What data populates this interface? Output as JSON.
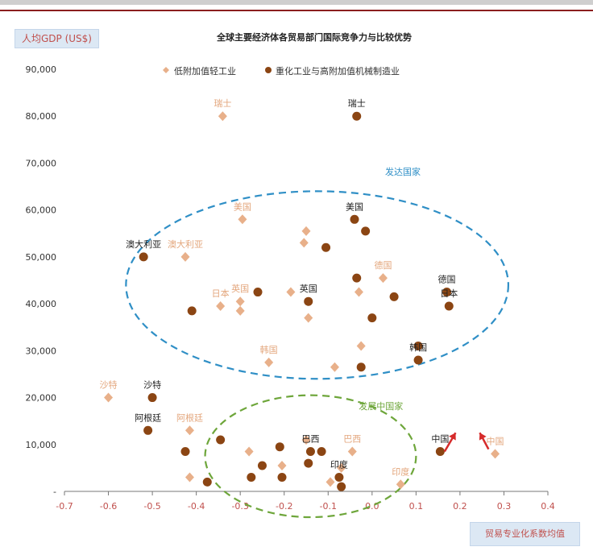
{
  "chart_data": {
    "type": "scatter",
    "title": "全球主要经济体各贸易部门国际竞争力与比较优势",
    "ylabel": "人均GDP (US$)",
    "xlabel": "贸易专业化系数均值",
    "xlim": [
      -0.7,
      0.4
    ],
    "ylim": [
      0,
      90000
    ],
    "xticks": [
      "-0.7",
      "-0.6",
      "-0.5",
      "-0.4",
      "-0.3",
      "-0.2",
      "-0.1",
      "0.0",
      "0.1",
      "0.2",
      "0.3",
      "0.4"
    ],
    "xtick_values": [
      -0.7,
      -0.6,
      -0.5,
      -0.4,
      -0.3,
      -0.2,
      -0.1,
      0.0,
      0.1,
      0.2,
      0.3,
      0.4
    ],
    "yticks": [
      "-",
      "10,000",
      "20,000",
      "30,000",
      "40,000",
      "50,000",
      "60,000",
      "70,000",
      "80,000",
      "90,000"
    ],
    "ytick_values": [
      0,
      10000,
      20000,
      30000,
      40000,
      50000,
      60000,
      70000,
      80000,
      90000
    ],
    "legend_position": "top-center",
    "series": [
      {
        "name": "低附加值轻工业",
        "color": "#e8b08a",
        "marker": "diamond",
        "points": [
          {
            "x": -0.34,
            "y": 80000,
            "label": "瑞士"
          },
          {
            "x": -0.295,
            "y": 58000,
            "label": "美国"
          },
          {
            "x": -0.15,
            "y": 55500
          },
          {
            "x": -0.155,
            "y": 53000
          },
          {
            "x": -0.425,
            "y": 50000,
            "label": "澳大利亚"
          },
          {
            "x": -0.03,
            "y": 42500
          },
          {
            "x": 0.025,
            "y": 45500,
            "label": "德国"
          },
          {
            "x": -0.185,
            "y": 42500
          },
          {
            "x": -0.345,
            "y": 39500,
            "label": "日本"
          },
          {
            "x": -0.3,
            "y": 40500,
            "label": "英国"
          },
          {
            "x": -0.3,
            "y": 38500
          },
          {
            "x": -0.145,
            "y": 37000
          },
          {
            "x": -0.025,
            "y": 31000
          },
          {
            "x": -0.235,
            "y": 27500,
            "label": "韩国"
          },
          {
            "x": -0.085,
            "y": 26500
          },
          {
            "x": -0.6,
            "y": 20000,
            "label": "沙特"
          },
          {
            "x": -0.415,
            "y": 13000,
            "label": "阿根廷"
          },
          {
            "x": -0.15,
            "y": 11000
          },
          {
            "x": -0.045,
            "y": 8500,
            "label": "巴西"
          },
          {
            "x": -0.28,
            "y": 8500
          },
          {
            "x": -0.205,
            "y": 5500
          },
          {
            "x": -0.07,
            "y": 5000
          },
          {
            "x": -0.095,
            "y": 2000
          },
          {
            "x": -0.415,
            "y": 3000
          },
          {
            "x": 0.065,
            "y": 1500,
            "label": "印度"
          },
          {
            "x": 0.28,
            "y": 8000,
            "label": "中国"
          }
        ]
      },
      {
        "name": "重化工业与高附加值机械制造业",
        "color": "#8b4513",
        "marker": "circle",
        "points": [
          {
            "x": -0.035,
            "y": 80000,
            "label": "瑞士"
          },
          {
            "x": -0.04,
            "y": 58000,
            "label": "美国"
          },
          {
            "x": -0.015,
            "y": 55500
          },
          {
            "x": -0.105,
            "y": 52000
          },
          {
            "x": -0.52,
            "y": 50000,
            "label": "澳大利亚"
          },
          {
            "x": -0.035,
            "y": 45500
          },
          {
            "x": 0.17,
            "y": 42500,
            "label": "德国"
          },
          {
            "x": 0.175,
            "y": 39500,
            "label": "日本"
          },
          {
            "x": -0.145,
            "y": 40500,
            "label": "英国"
          },
          {
            "x": -0.26,
            "y": 42500
          },
          {
            "x": -0.41,
            "y": 38500
          },
          {
            "x": 0.05,
            "y": 41500
          },
          {
            "x": 0.0,
            "y": 37000
          },
          {
            "x": 0.105,
            "y": 31000
          },
          {
            "x": 0.105,
            "y": 28000,
            "label": "韩国"
          },
          {
            "x": -0.025,
            "y": 26500
          },
          {
            "x": -0.5,
            "y": 20000,
            "label": "沙特"
          },
          {
            "x": -0.51,
            "y": 13000,
            "label": "阿根廷"
          },
          {
            "x": -0.345,
            "y": 11000
          },
          {
            "x": -0.21,
            "y": 9500
          },
          {
            "x": -0.425,
            "y": 8500
          },
          {
            "x": -0.14,
            "y": 8500,
            "label": "巴西"
          },
          {
            "x": -0.115,
            "y": 8500
          },
          {
            "x": -0.145,
            "y": 6000
          },
          {
            "x": -0.25,
            "y": 5500
          },
          {
            "x": -0.275,
            "y": 3000
          },
          {
            "x": -0.205,
            "y": 3000
          },
          {
            "x": -0.075,
            "y": 3000,
            "label": "印度"
          },
          {
            "x": -0.07,
            "y": 1000
          },
          {
            "x": -0.375,
            "y": 2000
          },
          {
            "x": 0.155,
            "y": 8500,
            "label": "中国"
          }
        ]
      }
    ],
    "annotations": [
      {
        "text": "发达国家",
        "color": "#2f8fc6",
        "x": 0.07,
        "y": 67500
      },
      {
        "text": "发展中国家",
        "color": "#6ea63b",
        "x": 0.02,
        "y": 17500
      }
    ],
    "groups": [
      {
        "name": "发达国家",
        "color": "#2f8fc6",
        "center": [
          -0.125,
          44000
        ],
        "radius_x": 0.435,
        "radius_y": 20000
      },
      {
        "name": "发展中国家",
        "color": "#6ea63b",
        "center": [
          -0.14,
          7500
        ],
        "radius_x": 0.24,
        "radius_y": 13000
      }
    ],
    "arrows": [
      {
        "color": "#d62b2b",
        "from": [
          0.165,
          8500
        ],
        "to": [
          0.19,
          12500
        ]
      },
      {
        "color": "#d62b2b",
        "from": [
          0.265,
          9000
        ],
        "to": [
          0.245,
          12500
        ]
      }
    ]
  }
}
